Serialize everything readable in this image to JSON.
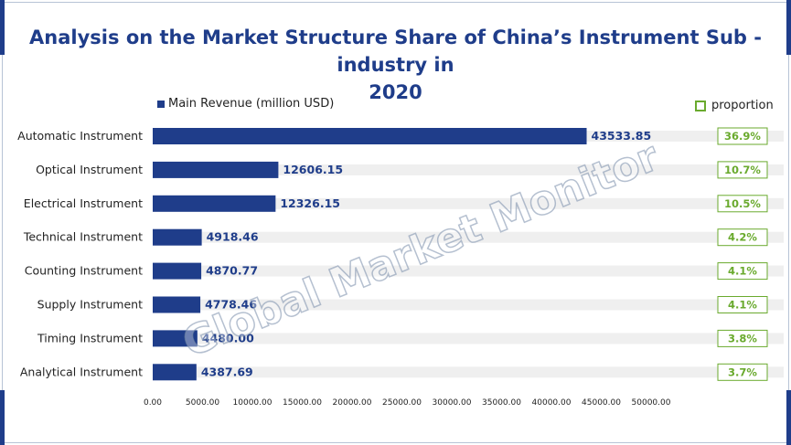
{
  "title_line1": "Analysis on the Market Structure Share of China’s Instrument Sub   -industry in",
  "title_line2": "2020",
  "watermark": "Global Market Monitor",
  "colors": {
    "bar": "#1f3d8a",
    "track": "#efefef",
    "proportion": "#6aaa2e",
    "title": "#1f3d8a"
  },
  "chart_data": {
    "type": "bar",
    "orientation": "horizontal",
    "title": "Analysis on the Market Structure Share of China’s Instrument Sub   -industry in 2020",
    "categories": [
      "Automatic Instrument",
      "Optical Instrument",
      "Electrical Instrument",
      "Technical Instrument",
      "Counting Instrument",
      "Supply Instrument",
      "Timing Instrument",
      "Analytical Instrument"
    ],
    "series": [
      {
        "name": "Main Revenue (million USD)",
        "values": [
          43533.85,
          12606.15,
          12326.15,
          4918.46,
          4870.77,
          4778.46,
          4480.0,
          4387.69
        ],
        "labels": [
          "43533.85",
          "12606.15",
          "12326.15",
          "4918.46",
          "4870.77",
          "4778.46",
          "4480.00",
          "4387.69"
        ]
      },
      {
        "name": "proportion",
        "values": [
          36.9,
          10.7,
          10.5,
          4.2,
          4.1,
          4.1,
          3.8,
          3.7
        ],
        "labels": [
          "36.9%",
          "10.7%",
          "10.5%",
          "4.2%",
          "4.1%",
          "4.1%",
          "3.8%",
          "3.7%"
        ]
      }
    ],
    "xlim": [
      0,
      50000
    ],
    "xticks": [
      "0.00",
      "5000.00",
      "10000.00",
      "15000.00",
      "20000.00",
      "25000.00",
      "30000.00",
      "35000.00",
      "40000.00",
      "45000.00",
      "50000.00"
    ],
    "legend": "top",
    "grid": false
  }
}
